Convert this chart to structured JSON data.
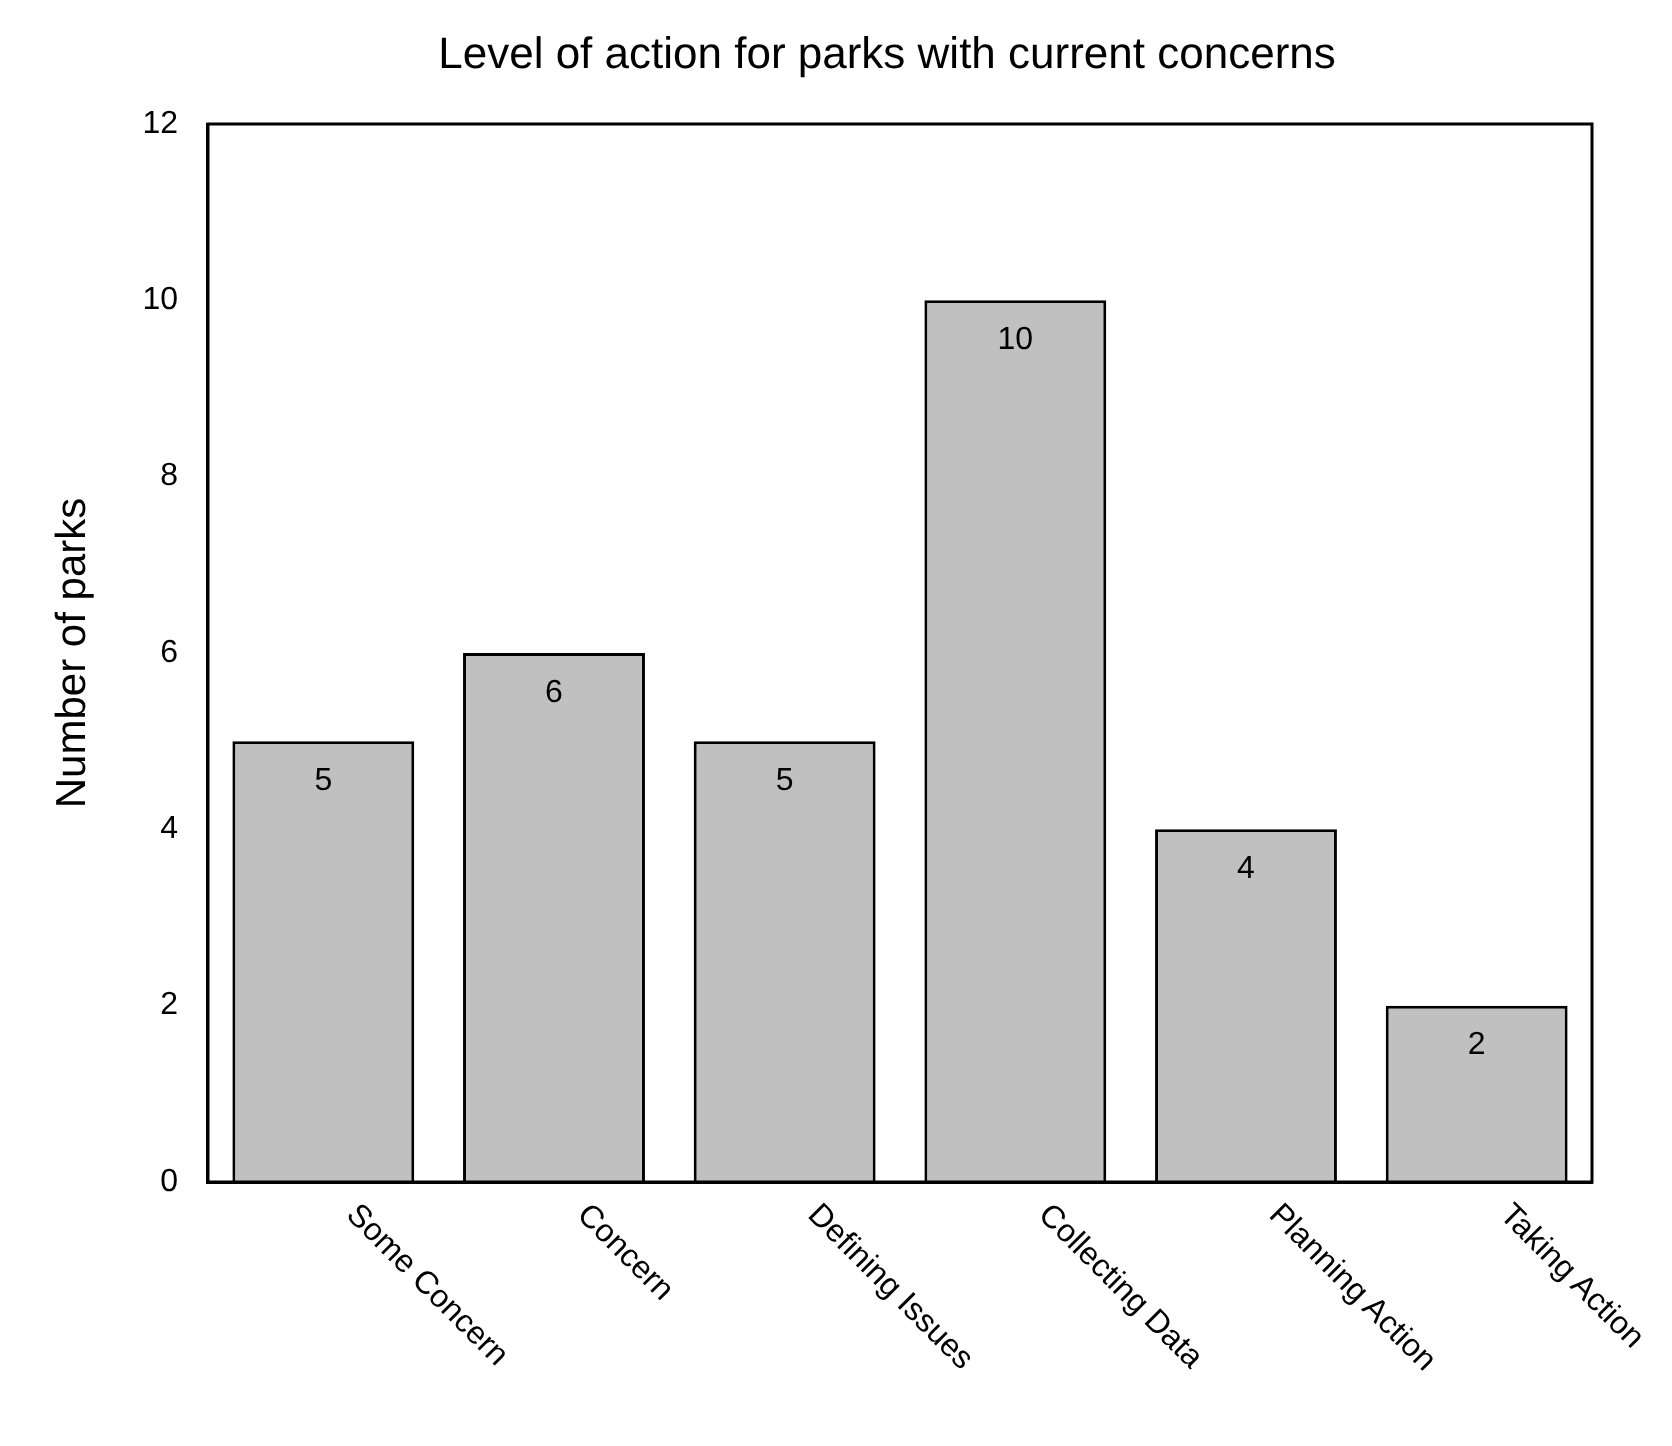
{
  "chart_data": {
    "type": "bar",
    "title": "Level of action for parks with current concerns",
    "ylabel": "Number of parks",
    "categories": [
      "Some Concern",
      "Concern",
      "Defining Issues",
      "Collecting Data",
      "Planning Action",
      "Taking Action"
    ],
    "values": [
      5,
      6,
      5,
      10,
      4,
      2
    ],
    "color": "#c0c0c0",
    "ylim": [
      0,
      12
    ],
    "yticks": [
      0,
      2,
      4,
      6,
      8,
      10,
      12
    ],
    "grid": false,
    "legend": false,
    "data_labels": true
  }
}
